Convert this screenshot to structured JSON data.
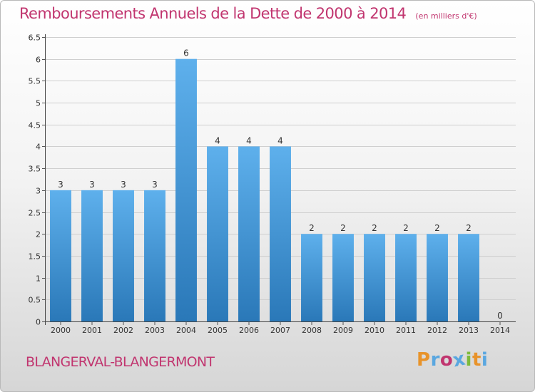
{
  "header": {
    "title": "Remboursements Annuels de la Dette de 2000 à 2014",
    "unit": "(en milliers d'€)"
  },
  "footer": {
    "commune": "BLANGERVAL-BLANGERMONT",
    "logo": "Proxiti",
    "logo_colors": [
      "#e8932a",
      "#5aa7e0",
      "#c1356f",
      "#5aa7e0",
      "#7dba3b",
      "#e8932a",
      "#5aa7e0"
    ]
  },
  "colors": {
    "title": "#c1356f",
    "bar_top": "#5eb0ec",
    "bar_bottom": "#2a78b8",
    "grid": "#cfcfcf"
  },
  "chart_data": {
    "type": "bar",
    "title": "Remboursements Annuels de la Dette de 2000 à 2014",
    "subtitle": "(en milliers d'€)",
    "xlabel": "",
    "ylabel": "",
    "categories": [
      "2000",
      "2001",
      "2002",
      "2003",
      "2004",
      "2005",
      "2006",
      "2007",
      "2008",
      "2009",
      "2010",
      "2011",
      "2012",
      "2013",
      "2014"
    ],
    "values": [
      3,
      3,
      3,
      3,
      6,
      4,
      4,
      4,
      2,
      2,
      2,
      2,
      2,
      2,
      0
    ],
    "data_labels": [
      "3",
      "3",
      "3",
      "3",
      "6",
      "4",
      "4",
      "4",
      "2",
      "2",
      "2",
      "2",
      "2",
      "2",
      "0"
    ],
    "ylim": [
      0,
      6.5
    ],
    "yticks": [
      0,
      0.5,
      1,
      1.5,
      2,
      2.5,
      3,
      3.5,
      4,
      4.5,
      5,
      5.5,
      6,
      6.5
    ],
    "ytick_labels": [
      "0",
      "0.5",
      "1",
      "1.5",
      "2",
      "2.5",
      "3",
      "3.5",
      "4",
      "4.5",
      "5",
      "5.5",
      "6",
      "6.5"
    ],
    "grid": true,
    "legend": "none"
  }
}
